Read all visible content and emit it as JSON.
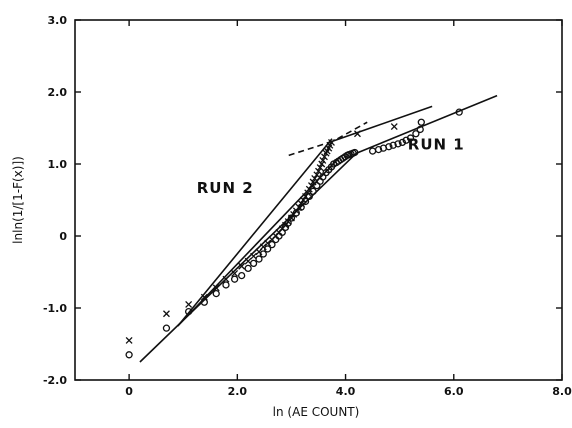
{
  "chart_data": {
    "type": "scatter",
    "title": "",
    "xlabel": "ln (AE COUNT)",
    "ylabel": "lnln(1/[1-F(x)])",
    "xlim": [
      -1.0,
      8.0
    ],
    "ylim": [
      -2.0,
      3.0
    ],
    "x_ticks": [
      {
        "value": 0,
        "label": "0"
      },
      {
        "value": 2,
        "label": "2.0"
      },
      {
        "value": 4,
        "label": "4.0"
      },
      {
        "value": 6,
        "label": "6.0"
      },
      {
        "value": 8,
        "label": "8.0"
      }
    ],
    "y_ticks": [
      {
        "value": -2,
        "label": "-2.0"
      },
      {
        "value": -1,
        "label": "-1.0"
      },
      {
        "value": 0,
        "label": "0"
      },
      {
        "value": 1,
        "label": "1.0"
      },
      {
        "value": 2,
        "label": "2.0"
      },
      {
        "value": 3,
        "label": "3.0"
      }
    ],
    "grid": false,
    "annotations": [
      {
        "text": "RUN 2",
        "x": 1.25,
        "y": 0.6
      },
      {
        "text": "RUN 1",
        "x": 5.15,
        "y": 1.2
      }
    ],
    "series": [
      {
        "marker": "x",
        "x": [
          0,
          0.69,
          1.1,
          1.39,
          1.61,
          1.79,
          1.95,
          2.08,
          2.2,
          2.3,
          2.4,
          2.48,
          2.56,
          2.64,
          2.71,
          2.77,
          2.83,
          2.89,
          2.94,
          3.0,
          3.04,
          3.09,
          3.14,
          3.18,
          3.22,
          3.26,
          3.3,
          3.33,
          3.37,
          3.4,
          3.43,
          3.47,
          3.5,
          3.53,
          3.56,
          3.58,
          3.61,
          3.64,
          3.66,
          3.69,
          3.71,
          3.74,
          4.22,
          4.9
        ],
        "y": [
          -1.45,
          -1.08,
          -0.95,
          -0.85,
          -0.72,
          -0.6,
          -0.52,
          -0.42,
          -0.35,
          -0.28,
          -0.22,
          -0.15,
          -0.1,
          -0.05,
          0.0,
          0.05,
          0.1,
          0.15,
          0.2,
          0.25,
          0.3,
          0.35,
          0.4,
          0.45,
          0.5,
          0.55,
          0.6,
          0.65,
          0.7,
          0.75,
          0.8,
          0.85,
          0.9,
          0.95,
          1.0,
          1.05,
          1.1,
          1.15,
          1.18,
          1.22,
          1.26,
          1.3,
          1.42,
          1.52
        ]
      },
      {
        "marker": "o",
        "x": [
          0,
          0.69,
          1.1,
          1.39,
          1.61,
          1.79,
          1.95,
          2.08,
          2.2,
          2.3,
          2.4,
          2.48,
          2.56,
          2.64,
          2.71,
          2.77,
          2.83,
          2.89,
          2.94,
          3.0,
          3.09,
          3.18,
          3.26,
          3.33,
          3.4,
          3.47,
          3.53,
          3.58,
          3.64,
          3.69,
          3.74,
          3.78,
          3.83,
          3.87,
          3.91,
          3.95,
          3.99,
          4.03,
          4.06,
          4.1,
          4.14,
          4.17,
          4.5,
          4.61,
          4.7,
          4.8,
          4.88,
          4.97,
          5.05,
          5.12,
          5.2,
          5.3,
          5.38,
          5.4,
          6.1
        ],
        "y": [
          -1.65,
          -1.28,
          -1.05,
          -0.92,
          -0.8,
          -0.68,
          -0.6,
          -0.55,
          -0.45,
          -0.38,
          -0.32,
          -0.25,
          -0.18,
          -0.12,
          -0.05,
          0.0,
          0.05,
          0.12,
          0.18,
          0.25,
          0.32,
          0.4,
          0.48,
          0.55,
          0.62,
          0.7,
          0.76,
          0.82,
          0.88,
          0.92,
          0.96,
          1.0,
          1.02,
          1.04,
          1.06,
          1.08,
          1.1,
          1.12,
          1.13,
          1.14,
          1.15,
          1.16,
          1.18,
          1.2,
          1.22,
          1.24,
          1.26,
          1.28,
          1.3,
          1.33,
          1.36,
          1.42,
          1.48,
          1.58,
          1.72
        ]
      }
    ],
    "lines": [
      {
        "style": "solid",
        "points": [
          [
            0.2,
            -1.75
          ],
          [
            4.2,
            1.15
          ]
        ]
      },
      {
        "style": "solid",
        "points": [
          [
            4.2,
            1.15
          ],
          [
            6.8,
            1.95
          ]
        ]
      },
      {
        "style": "solid",
        "points": [
          [
            0.9,
            -1.25
          ],
          [
            3.75,
            1.35
          ]
        ]
      },
      {
        "style": "solid",
        "points": [
          [
            0.9,
            -1.25
          ],
          [
            3.9,
            1.1
          ]
        ]
      },
      {
        "style": "solid",
        "points": [
          [
            3.7,
            1.3
          ],
          [
            5.6,
            1.8
          ]
        ]
      },
      {
        "style": "dashed",
        "points": [
          [
            2.95,
            1.12
          ],
          [
            3.7,
            1.3
          ]
        ]
      },
      {
        "style": "dashed",
        "points": [
          [
            3.85,
            1.35
          ],
          [
            4.4,
            1.58
          ]
        ]
      }
    ]
  }
}
